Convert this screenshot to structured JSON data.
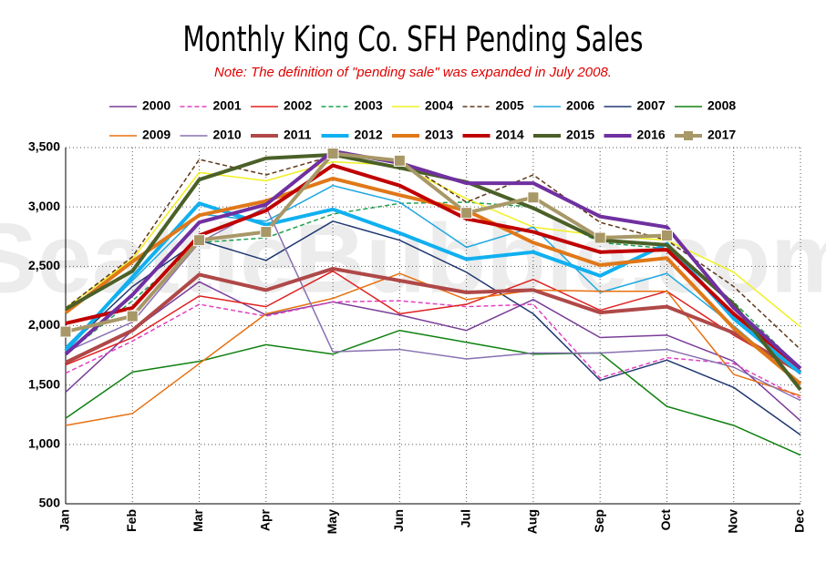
{
  "chart_data": {
    "type": "line",
    "title": "Monthly King Co. SFH Pending Sales",
    "subtitle": "Note: The definition of \"pending sale\" was expanded in July 2008.",
    "watermark": "SeattleBubble.com",
    "categories": [
      "Jan",
      "Feb",
      "Mar",
      "Apr",
      "May",
      "Jun",
      "Jul",
      "Aug",
      "Sep",
      "Oct",
      "Nov",
      "Dec"
    ],
    "ylim": [
      500,
      3500
    ],
    "yticks": [
      {
        "value": 3500,
        "label": "3,500"
      },
      {
        "value": 3000,
        "label": "3,000"
      },
      {
        "value": 2500,
        "label": "2,500"
      },
      {
        "value": 2000,
        "label": "2,000"
      },
      {
        "value": 1500,
        "label": "1,500"
      },
      {
        "value": 1000,
        "label": "1,000"
      },
      500
    ],
    "grid": true,
    "legend": "top",
    "series": [
      {
        "name": "2000",
        "color": "#7a3d99",
        "values": [
          1440,
          1960,
          2370,
          2090,
          2200,
          2090,
          1960,
          2220,
          1900,
          1920,
          1700,
          1200
        ]
      },
      {
        "name": "2001",
        "color": "#e040c0",
        "dashed": true,
        "values": [
          1600,
          1870,
          2180,
          2080,
          2200,
          2210,
          2160,
          2180,
          1560,
          1730,
          1680,
          1390
        ]
      },
      {
        "name": "2002",
        "color": "#e02020",
        "values": [
          1670,
          1900,
          2250,
          2160,
          2460,
          2100,
          2180,
          2390,
          2130,
          2290,
          1920,
          1600
        ]
      },
      {
        "name": "2003",
        "color": "#20a050",
        "dashed": true,
        "values": [
          1760,
          2210,
          2700,
          2740,
          2940,
          3030,
          3040,
          3000,
          2700,
          2650,
          2200,
          1640
        ]
      },
      {
        "name": "2004",
        "color": "#f0f020",
        "values": [
          2150,
          2560,
          3290,
          3220,
          3380,
          3350,
          3070,
          2830,
          2760,
          2720,
          2450,
          1990
        ]
      },
      {
        "name": "2005",
        "color": "#603818",
        "dashed": true,
        "values": [
          2150,
          2580,
          3400,
          3270,
          3430,
          3400,
          3040,
          3270,
          2870,
          2720,
          2330,
          1800
        ]
      },
      {
        "name": "2006",
        "color": "#20a8e0",
        "values": [
          1820,
          2380,
          2940,
          2880,
          3180,
          3040,
          2660,
          2830,
          2280,
          2440,
          2000,
          1510
        ]
      },
      {
        "name": "2007",
        "color": "#203870",
        "values": [
          1800,
          2330,
          2720,
          2550,
          2880,
          2720,
          2450,
          2100,
          1540,
          1710,
          1480,
          1080
        ]
      },
      {
        "name": "2008",
        "color": "#108010",
        "values": [
          1220,
          1610,
          1700,
          1840,
          1760,
          1960,
          1860,
          1760,
          1770,
          1320,
          1160,
          910
        ]
      },
      {
        "name": "2009",
        "color": "#e87010",
        "values": [
          1160,
          1260,
          1680,
          2100,
          2230,
          2440,
          2220,
          2300,
          2290,
          2290,
          1590,
          1410
        ]
      },
      {
        "name": "2010",
        "color": "#8870b0",
        "values": [
          1780,
          2030,
          2700,
          3000,
          1780,
          1800,
          1720,
          1770,
          1770,
          1800,
          1650,
          1370
        ]
      },
      {
        "name": "2011",
        "color": "#b04848",
        "thick": true,
        "values": [
          1690,
          1960,
          2430,
          2300,
          2480,
          2380,
          2280,
          2300,
          2110,
          2160,
          1940,
          1610
        ]
      },
      {
        "name": "2012",
        "color": "#10b0f0",
        "thick": true,
        "values": [
          1790,
          2410,
          3030,
          2850,
          2980,
          2780,
          2560,
          2620,
          2420,
          2690,
          2060,
          1600
        ]
      },
      {
        "name": "2013",
        "color": "#e07818",
        "thick": true,
        "values": [
          2110,
          2540,
          2930,
          3050,
          3240,
          3100,
          2970,
          2700,
          2510,
          2570,
          1980,
          1510
        ]
      },
      {
        "name": "2014",
        "color": "#c00000",
        "thick": true,
        "values": [
          2020,
          2150,
          2760,
          2970,
          3350,
          3180,
          2900,
          2790,
          2620,
          2640,
          2100,
          1640
        ]
      },
      {
        "name": "2015",
        "color": "#4a6028",
        "thick": true,
        "values": [
          2140,
          2460,
          3230,
          3410,
          3440,
          3330,
          3210,
          2990,
          2720,
          2680,
          2180,
          1460
        ]
      },
      {
        "name": "2016",
        "color": "#7030a0",
        "thick": true,
        "values": [
          1760,
          2260,
          2870,
          3020,
          3470,
          3370,
          3200,
          3200,
          2920,
          2830,
          2150,
          1640
        ]
      },
      {
        "name": "2017",
        "color": "#a89868",
        "thick": true,
        "markers": "square",
        "values": [
          1950,
          2080,
          2720,
          2790,
          3450,
          3390,
          2950,
          3080,
          2740,
          2760,
          null,
          null
        ]
      }
    ]
  }
}
